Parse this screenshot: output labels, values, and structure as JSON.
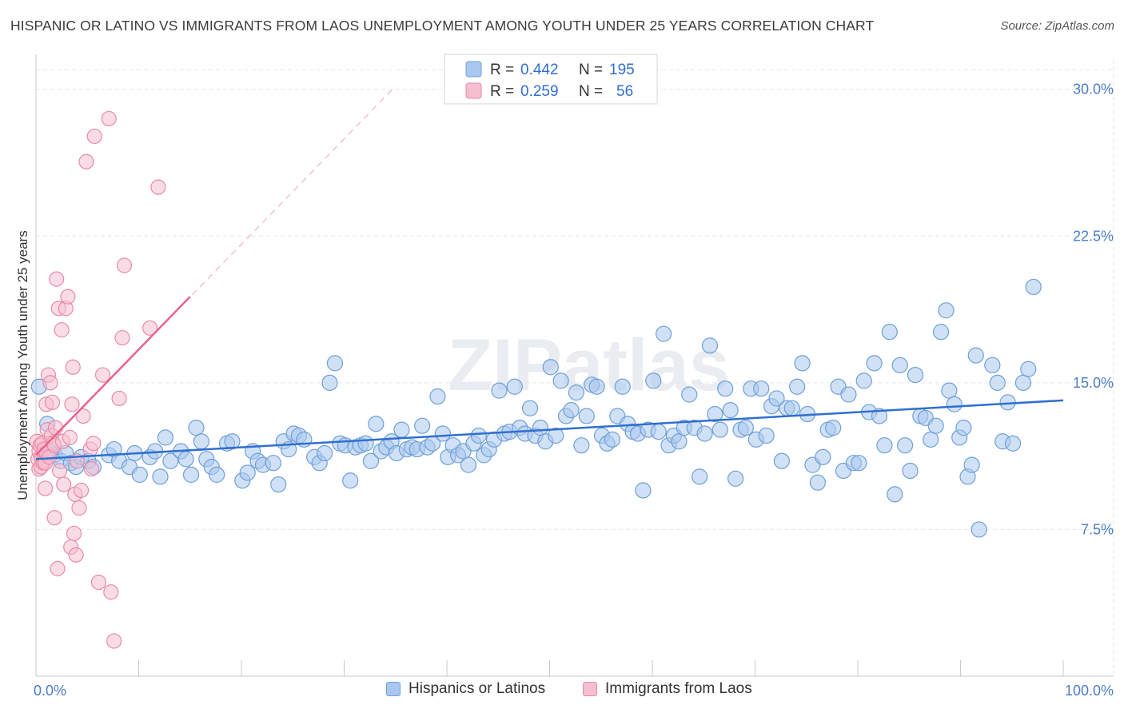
{
  "header": {
    "title": "HISPANIC OR LATINO VS IMMIGRANTS FROM LAOS UNEMPLOYMENT AMONG YOUTH UNDER 25 YEARS CORRELATION CHART",
    "source": "Source: ZipAtlas.com"
  },
  "watermark": "ZIPatlas",
  "colors": {
    "blue_fill": "#a9c8ef",
    "blue_stroke": "#6f9fd8",
    "blue_line": "#2f6fd0",
    "pink_fill": "#f5bfd0",
    "pink_stroke": "#e98aa9",
    "pink_line": "#e8638e",
    "tick_blue": "#4c7dc7",
    "grid": "#e6e6e6"
  },
  "legend_top": {
    "rows": [
      {
        "r_label": "R = ",
        "r_value": "0.442",
        "n_label": "N = ",
        "n_value": "195"
      },
      {
        "r_label": "R = ",
        "r_value": "0.259",
        "n_label": "N = ",
        "n_value": "56"
      }
    ]
  },
  "legend_bottom": {
    "items": [
      "Hispanics or Latinos",
      "Immigrants from Laos"
    ]
  },
  "chart_data": {
    "type": "scatter",
    "title": "HISPANIC OR LATINO VS IMMIGRANTS FROM LAOS UNEMPLOYMENT AMONG YOUTH UNDER 25 YEARS CORRELATION CHART",
    "xlabel": "",
    "ylabel": "Unemployment Among Youth under 25 years",
    "xlim": [
      0,
      100
    ],
    "ylim": [
      0,
      31.5
    ],
    "x_tick_labels": [
      "0.0%",
      "100.0%"
    ],
    "y_ticks": [
      7.5,
      15.0,
      22.5,
      30.0
    ],
    "y_tick_labels": [
      "7.5%",
      "15.0%",
      "22.5%",
      "30.0%"
    ],
    "grid": true,
    "legend": "top-center",
    "series": [
      {
        "name": "Hispanics or Latinos",
        "r": 0.442,
        "n": 195,
        "trend": {
          "x": [
            0,
            100
          ],
          "y": [
            11.1,
            14.1
          ]
        },
        "points": [
          [
            0.3,
            14.8
          ],
          [
            1.1,
            12.9
          ],
          [
            1.3,
            11.5
          ],
          [
            1.8,
            11.3
          ],
          [
            2.4,
            11.0
          ],
          [
            2.9,
            11.4
          ],
          [
            3.4,
            10.9
          ],
          [
            3.9,
            10.7
          ],
          [
            4.4,
            11.2
          ],
          [
            5.1,
            11.0
          ],
          [
            5.6,
            10.7
          ],
          [
            7.1,
            11.3
          ],
          [
            7.6,
            11.6
          ],
          [
            8.1,
            11.0
          ],
          [
            9.1,
            10.7
          ],
          [
            9.6,
            11.4
          ],
          [
            10.1,
            10.3
          ],
          [
            11.1,
            11.2
          ],
          [
            11.6,
            11.5
          ],
          [
            12.1,
            10.2
          ],
          [
            12.6,
            12.2
          ],
          [
            13.1,
            11.0
          ],
          [
            14.1,
            11.5
          ],
          [
            14.6,
            11.1
          ],
          [
            15.1,
            10.3
          ],
          [
            15.6,
            12.7
          ],
          [
            16.1,
            12.0
          ],
          [
            16.6,
            11.1
          ],
          [
            17.1,
            10.7
          ],
          [
            17.6,
            10.3
          ],
          [
            18.6,
            11.9
          ],
          [
            19.1,
            12.0
          ],
          [
            20.1,
            10.0
          ],
          [
            20.6,
            10.4
          ],
          [
            21.1,
            11.5
          ],
          [
            21.6,
            11.0
          ],
          [
            22.1,
            10.8
          ],
          [
            23.1,
            10.9
          ],
          [
            23.6,
            9.8
          ],
          [
            24.1,
            12.0
          ],
          [
            24.6,
            11.6
          ],
          [
            25.1,
            12.4
          ],
          [
            25.6,
            12.3
          ],
          [
            26.1,
            12.1
          ],
          [
            27.1,
            11.2
          ],
          [
            27.6,
            10.9
          ],
          [
            28.1,
            11.4
          ],
          [
            29.1,
            16.0
          ],
          [
            28.6,
            15.0
          ],
          [
            29.6,
            11.9
          ],
          [
            30.1,
            11.8
          ],
          [
            30.6,
            10.0
          ],
          [
            31.1,
            11.7
          ],
          [
            31.6,
            11.8
          ],
          [
            32.1,
            11.9
          ],
          [
            32.6,
            11.0
          ],
          [
            33.1,
            12.9
          ],
          [
            33.6,
            11.5
          ],
          [
            34.1,
            11.7
          ],
          [
            34.6,
            12.0
          ],
          [
            35.1,
            11.4
          ],
          [
            35.6,
            12.6
          ],
          [
            36.1,
            11.6
          ],
          [
            36.6,
            11.7
          ],
          [
            37.1,
            11.6
          ],
          [
            37.6,
            12.8
          ],
          [
            38.1,
            11.7
          ],
          [
            38.6,
            11.9
          ],
          [
            39.1,
            14.3
          ],
          [
            39.6,
            12.4
          ],
          [
            40.1,
            11.2
          ],
          [
            40.6,
            11.8
          ],
          [
            41.1,
            11.3
          ],
          [
            41.6,
            11.5
          ],
          [
            42.1,
            10.8
          ],
          [
            42.6,
            11.9
          ],
          [
            43.1,
            12.3
          ],
          [
            43.6,
            11.3
          ],
          [
            44.1,
            11.6
          ],
          [
            44.6,
            12.1
          ],
          [
            45.1,
            14.6
          ],
          [
            45.6,
            12.4
          ],
          [
            46.1,
            12.5
          ],
          [
            46.6,
            14.8
          ],
          [
            47.1,
            12.7
          ],
          [
            47.6,
            12.4
          ],
          [
            48.1,
            13.7
          ],
          [
            48.6,
            12.3
          ],
          [
            49.1,
            12.7
          ],
          [
            49.6,
            12.0
          ],
          [
            50.1,
            15.8
          ],
          [
            50.6,
            12.3
          ],
          [
            51.1,
            15.1
          ],
          [
            51.6,
            13.3
          ],
          [
            52.1,
            13.6
          ],
          [
            52.6,
            14.5
          ],
          [
            53.1,
            11.8
          ],
          [
            53.6,
            13.3
          ],
          [
            54.1,
            14.9
          ],
          [
            54.6,
            14.8
          ],
          [
            55.1,
            12.3
          ],
          [
            55.6,
            11.9
          ],
          [
            56.1,
            12.1
          ],
          [
            56.6,
            13.3
          ],
          [
            57.1,
            14.8
          ],
          [
            57.6,
            12.9
          ],
          [
            58.1,
            12.5
          ],
          [
            58.6,
            12.4
          ],
          [
            59.1,
            9.5
          ],
          [
            59.6,
            12.6
          ],
          [
            60.1,
            15.1
          ],
          [
            60.6,
            12.5
          ],
          [
            61.1,
            17.5
          ],
          [
            61.6,
            11.8
          ],
          [
            62.1,
            12.3
          ],
          [
            62.6,
            12.0
          ],
          [
            63.1,
            12.7
          ],
          [
            63.6,
            14.4
          ],
          [
            64.1,
            12.7
          ],
          [
            64.6,
            10.2
          ],
          [
            65.1,
            12.4
          ],
          [
            65.6,
            16.9
          ],
          [
            66.1,
            13.4
          ],
          [
            66.6,
            12.6
          ],
          [
            67.1,
            14.7
          ],
          [
            67.6,
            13.6
          ],
          [
            68.1,
            10.1
          ],
          [
            68.6,
            12.6
          ],
          [
            69.1,
            12.7
          ],
          [
            69.6,
            14.7
          ],
          [
            70.1,
            12.1
          ],
          [
            70.6,
            14.7
          ],
          [
            71.1,
            12.3
          ],
          [
            71.6,
            13.8
          ],
          [
            72.1,
            14.2
          ],
          [
            72.6,
            11.0
          ],
          [
            73.1,
            13.7
          ],
          [
            73.6,
            13.7
          ],
          [
            74.1,
            14.8
          ],
          [
            74.6,
            16.0
          ],
          [
            75.1,
            13.4
          ],
          [
            75.6,
            10.8
          ],
          [
            76.1,
            9.9
          ],
          [
            76.6,
            11.2
          ],
          [
            77.1,
            12.6
          ],
          [
            77.6,
            12.7
          ],
          [
            78.1,
            14.8
          ],
          [
            78.6,
            10.5
          ],
          [
            79.1,
            14.4
          ],
          [
            79.6,
            10.9
          ],
          [
            80.1,
            10.9
          ],
          [
            80.6,
            15.1
          ],
          [
            81.1,
            13.5
          ],
          [
            81.6,
            16.0
          ],
          [
            82.1,
            13.3
          ],
          [
            82.6,
            11.8
          ],
          [
            83.1,
            17.6
          ],
          [
            83.6,
            9.3
          ],
          [
            84.1,
            15.9
          ],
          [
            84.6,
            11.8
          ],
          [
            85.1,
            10.5
          ],
          [
            85.6,
            15.4
          ],
          [
            86.1,
            13.3
          ],
          [
            86.6,
            13.2
          ],
          [
            87.1,
            12.1
          ],
          [
            87.6,
            12.8
          ],
          [
            88.1,
            17.6
          ],
          [
            88.6,
            18.7
          ],
          [
            88.9,
            14.6
          ],
          [
            89.4,
            13.9
          ],
          [
            89.9,
            12.2
          ],
          [
            90.3,
            12.7
          ],
          [
            90.7,
            10.2
          ],
          [
            91.1,
            10.8
          ],
          [
            91.5,
            16.4
          ],
          [
            91.8,
            7.5
          ],
          [
            93.1,
            15.9
          ],
          [
            93.6,
            15.0
          ],
          [
            94.1,
            12.0
          ],
          [
            94.6,
            14.0
          ],
          [
            95.1,
            11.9
          ],
          [
            96.1,
            15.0
          ],
          [
            96.6,
            15.7
          ],
          [
            97.1,
            19.9
          ]
        ]
      },
      {
        "name": "Immigrants from Laos",
        "r": 0.259,
        "n": 56,
        "trend": {
          "x": [
            0,
            15.0
          ],
          "y": [
            11.3,
            19.4
          ]
        },
        "points": [
          [
            0.1,
            12.0
          ],
          [
            0.2,
            11.1
          ],
          [
            0.3,
            11.5
          ],
          [
            0.3,
            10.6
          ],
          [
            0.4,
            11.8
          ],
          [
            0.5,
            11.2
          ],
          [
            0.5,
            10.7
          ],
          [
            0.6,
            11.9
          ],
          [
            0.7,
            11.0
          ],
          [
            0.7,
            10.9
          ],
          [
            0.8,
            11.6
          ],
          [
            0.9,
            10.9
          ],
          [
            1.0,
            11.4
          ],
          [
            0.9,
            9.6
          ],
          [
            1.0,
            13.9
          ],
          [
            1.1,
            12.6
          ],
          [
            1.2,
            15.4
          ],
          [
            1.3,
            11.2
          ],
          [
            1.4,
            15.0
          ],
          [
            1.5,
            12.3
          ],
          [
            1.6,
            14.0
          ],
          [
            1.7,
            11.9
          ],
          [
            1.8,
            11.8
          ],
          [
            1.9,
            12.7
          ],
          [
            1.8,
            8.1
          ],
          [
            2.0,
            20.3
          ],
          [
            2.2,
            18.8
          ],
          [
            2.3,
            10.5
          ],
          [
            2.5,
            17.7
          ],
          [
            2.6,
            12.0
          ],
          [
            2.7,
            9.8
          ],
          [
            2.1,
            5.5
          ],
          [
            2.9,
            18.8
          ],
          [
            3.1,
            19.4
          ],
          [
            3.3,
            12.2
          ],
          [
            3.5,
            13.9
          ],
          [
            3.6,
            15.8
          ],
          [
            3.7,
            7.3
          ],
          [
            3.4,
            6.6
          ],
          [
            3.9,
            6.2
          ],
          [
            3.8,
            9.3
          ],
          [
            4.0,
            11.0
          ],
          [
            4.2,
            8.6
          ],
          [
            4.4,
            9.5
          ],
          [
            4.6,
            13.3
          ],
          [
            4.9,
            26.3
          ],
          [
            5.3,
            11.6
          ],
          [
            5.4,
            10.6
          ],
          [
            5.6,
            11.9
          ],
          [
            5.7,
            27.6
          ],
          [
            6.1,
            4.8
          ],
          [
            6.5,
            15.4
          ],
          [
            7.1,
            28.5
          ],
          [
            7.3,
            4.3
          ],
          [
            7.6,
            1.8
          ],
          [
            8.1,
            14.2
          ],
          [
            8.4,
            17.3
          ],
          [
            8.6,
            21.0
          ],
          [
            11.1,
            17.8
          ],
          [
            11.9,
            25.0
          ]
        ]
      }
    ]
  }
}
